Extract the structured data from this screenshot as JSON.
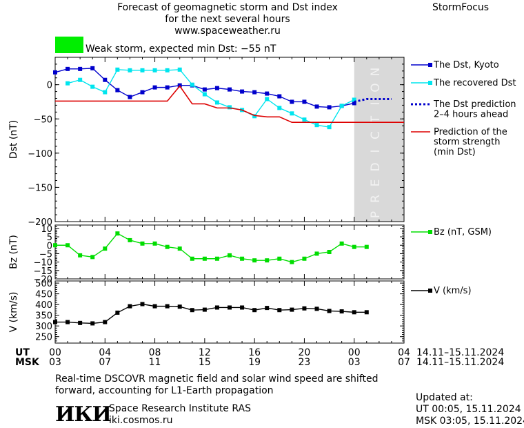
{
  "header": {
    "title_line1": "Forecast of geomagnetic storm and Dst index",
    "title_line2": "for the next several hours",
    "title_line3": "www.spaceweather.ru",
    "brand": "StormFocus",
    "storm_status": "Weak storm, expected min Dst: −55 nT",
    "storm_color": "#00ee00"
  },
  "footer": {
    "note_line1": "Real-time DSCOVR magnetic field and solar wind speed are shifted",
    "note_line2": "forward, accounting for L1-Earth propagation",
    "institute": "Space Research Institute RAS",
    "website": "iki.cosmos.ru",
    "logo_text": "ИКИ",
    "updated_label": "Updated at:",
    "updated_ut": "UT   00:05, 15.11.2024",
    "updated_msk": "MSK 03:05, 15.11.2024"
  },
  "time_axis": {
    "ut_label": "UT",
    "msk_label": "MSK",
    "ut_ticks": [
      "00",
      "04",
      "08",
      "12",
      "16",
      "20",
      "00",
      "04"
    ],
    "msk_ticks": [
      "03",
      "07",
      "11",
      "15",
      "19",
      "23",
      "03",
      "07"
    ],
    "ut_range": "14.11–15.11.2024",
    "msk_range": "14.11–15.11.2024",
    "hour_range": [
      0,
      28
    ],
    "prediction_start": 24,
    "prediction_label": "PREDICTION"
  },
  "chart_data": [
    {
      "type": "line",
      "ylabel": "Dst (nT)",
      "xlim": [
        0,
        28
      ],
      "ylim": [
        -200,
        40
      ],
      "yticks": [
        0,
        -50,
        -100,
        -150,
        -200
      ],
      "yticklabels": [
        "0",
        "−50",
        "−100",
        "−150",
        "−200"
      ],
      "series": [
        {
          "name": "The Dst, Kyoto",
          "color": "#0000cc",
          "marker": "square",
          "x": [
            0,
            1,
            2,
            3,
            4,
            5,
            6,
            7,
            8,
            9,
            10,
            11,
            12,
            13,
            14,
            15,
            16,
            17,
            18,
            19,
            20,
            21,
            22,
            23,
            24
          ],
          "y": [
            18,
            23,
            23,
            24,
            7,
            -8,
            -18,
            -11,
            -4,
            -4,
            -1,
            -1,
            -7,
            -5,
            -7,
            -10,
            -11,
            -13,
            -17,
            -25,
            -25,
            -32,
            -33,
            -31,
            -27
          ]
        },
        {
          "name": "The recovered Dst",
          "color": "#00e5ee",
          "marker": "square",
          "x": [
            1,
            2,
            3,
            4,
            5,
            6,
            7,
            8,
            9,
            10,
            11,
            12,
            13,
            14,
            15,
            16,
            17,
            18,
            19,
            20,
            21,
            22,
            23,
            24
          ],
          "y": [
            2,
            7,
            -3,
            -11,
            22,
            21,
            21,
            21,
            21,
            22,
            0,
            -14,
            -26,
            -33,
            -37,
            -46,
            -21,
            -34,
            -42,
            -51,
            -59,
            -62,
            -31,
            -22
          ]
        },
        {
          "name": "The Dst prediction\n2–4 hours ahead",
          "color": "#0000cc",
          "dashed": true,
          "x": [
            24,
            24.5,
            25,
            25.5,
            26,
            26.5,
            27
          ],
          "y": [
            -25,
            -23,
            -21,
            -21,
            -21,
            -21,
            -21
          ]
        },
        {
          "name": "Prediction of the\nstorm strength\n(min Dst)",
          "color": "#dd0000",
          "step": true,
          "x": [
            0,
            9,
            10,
            11,
            12,
            13,
            14,
            15,
            16,
            17,
            18,
            19,
            28
          ],
          "y": [
            -24,
            -24,
            -2,
            -28,
            -28,
            -34,
            -34,
            -37,
            -45,
            -47,
            -47,
            -55,
            -55
          ]
        }
      ]
    },
    {
      "type": "line",
      "ylabel": "Bz (nT)",
      "xlim": [
        0,
        28
      ],
      "ylim": [
        -20,
        12
      ],
      "yticks": [
        10,
        5,
        0,
        -5,
        -10,
        -15,
        -20
      ],
      "yticklabels": [
        "10",
        "5",
        "0",
        "−5",
        "−10",
        "−15",
        "−20"
      ],
      "series": [
        {
          "name": "Bz (nT, GSM)",
          "color": "#00dd00",
          "marker": "square",
          "x": [
            0,
            1,
            2,
            3,
            4,
            5,
            6,
            7,
            8,
            9,
            10,
            11,
            12,
            13,
            14,
            15,
            16,
            17,
            18,
            19,
            20,
            21,
            22,
            23,
            24,
            25
          ],
          "y": [
            0,
            0,
            -6,
            -7,
            -2,
            7,
            3,
            1,
            1,
            -1,
            -2,
            -8,
            -8,
            -8,
            -6,
            -8,
            -9,
            -9,
            -8,
            -10,
            -8,
            -5,
            -4,
            1,
            -1,
            -1
          ]
        }
      ]
    },
    {
      "type": "line",
      "ylabel": "V (km/s)",
      "xlim": [
        0,
        28
      ],
      "ylim": [
        220,
        510
      ],
      "yticks": [
        500,
        450,
        400,
        350,
        300,
        250
      ],
      "yticklabels": [
        "500",
        "450",
        "400",
        "350",
        "300",
        "250"
      ],
      "series": [
        {
          "name": "V (km/s)",
          "color": "#000000",
          "marker": "square",
          "x": [
            0,
            1,
            2,
            3,
            4,
            5,
            6,
            7,
            8,
            9,
            10,
            11,
            12,
            13,
            14,
            15,
            16,
            17,
            18,
            19,
            20,
            21,
            22,
            23,
            24,
            25
          ],
          "y": [
            318,
            318,
            314,
            312,
            318,
            362,
            392,
            402,
            392,
            392,
            390,
            374,
            376,
            386,
            386,
            386,
            374,
            384,
            374,
            376,
            382,
            380,
            370,
            368,
            364,
            364
          ]
        }
      ]
    }
  ]
}
